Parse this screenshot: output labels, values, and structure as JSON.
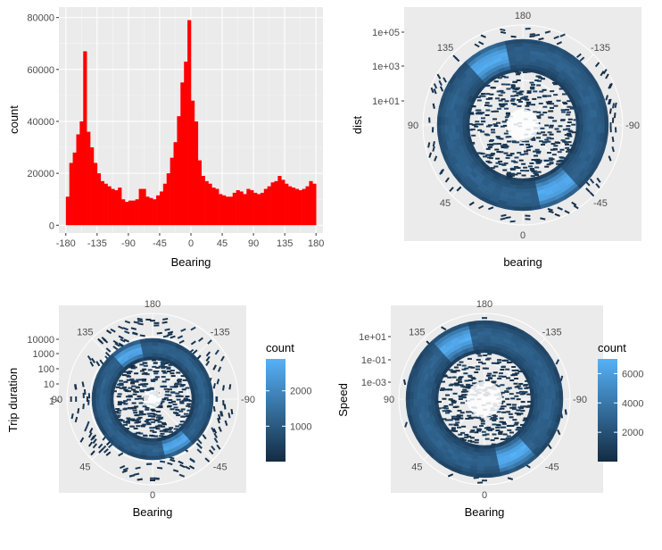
{
  "chart_data": [
    {
      "type": "bar",
      "xlabel": "Bearing",
      "ylabel": "count",
      "xlim": [
        -190,
        190
      ],
      "ylim": [
        -3000,
        84000
      ],
      "x_ticks": [
        -180,
        -135,
        -90,
        -45,
        0,
        45,
        90,
        135,
        180
      ],
      "y_ticks": [
        0,
        20000,
        40000,
        60000,
        80000
      ],
      "bar_color": "#ff0000",
      "panel_color": "#ebebeb",
      "bin_width": 5,
      "x": [
        -177.5,
        -172.5,
        -167.5,
        -162.5,
        -157.5,
        -152.5,
        -147.5,
        -142.5,
        -137.5,
        -132.5,
        -127.5,
        -122.5,
        -117.5,
        -112.5,
        -107.5,
        -102.5,
        -97.5,
        -92.5,
        -87.5,
        -82.5,
        -77.5,
        -72.5,
        -67.5,
        -62.5,
        -57.5,
        -52.5,
        -47.5,
        -42.5,
        -37.5,
        -32.5,
        -27.5,
        -22.5,
        -17.5,
        -12.5,
        -7.5,
        -2.5,
        2.5,
        7.5,
        12.5,
        17.5,
        22.5,
        27.5,
        32.5,
        37.5,
        42.5,
        47.5,
        52.5,
        57.5,
        62.5,
        67.5,
        72.5,
        77.5,
        82.5,
        87.5,
        92.5,
        97.5,
        102.5,
        107.5,
        112.5,
        117.5,
        122.5,
        127.5,
        132.5,
        137.5,
        142.5,
        147.5,
        152.5,
        157.5,
        162.5,
        167.5,
        172.5,
        177.5
      ],
      "values": [
        11000,
        24000,
        28000,
        35000,
        40000,
        67000,
        36000,
        30000,
        24000,
        20000,
        17000,
        16000,
        15000,
        14000,
        13500,
        14500,
        10000,
        9000,
        9500,
        9500,
        10000,
        14000,
        14000,
        11000,
        10500,
        10000,
        11500,
        13000,
        16000,
        20000,
        26000,
        32000,
        42000,
        55000,
        63000,
        79000,
        48000,
        40000,
        25000,
        19000,
        17000,
        16000,
        14500,
        14000,
        12000,
        11500,
        11000,
        11000,
        12500,
        13500,
        13000,
        12000,
        14000,
        13500,
        12500,
        12000,
        12500,
        14000,
        15000,
        16500,
        17000,
        19000,
        17500,
        16000,
        15000,
        14500,
        14000,
        13500,
        14000,
        15000,
        17000,
        16000
      ]
    },
    {
      "type": "heatmap",
      "projection": "polar",
      "xlabel": "bearing",
      "ylabel": "dist",
      "y_tick_labels": [
        "1e+05",
        "1e+03",
        "1e+01"
      ],
      "angle_labels": [
        "180",
        "-135",
        "-90",
        "-45",
        "0",
        "45",
        "90",
        "135"
      ],
      "legend": "none"
    },
    {
      "type": "heatmap",
      "projection": "polar",
      "xlabel": "Bearing",
      "ylabel": "Trip duration",
      "y_tick_labels": [
        "10000",
        "1000",
        "100",
        "10",
        "1"
      ],
      "angle_labels": [
        "180",
        "-135",
        "-90",
        "-45",
        "0",
        "45",
        "90",
        "135"
      ],
      "legend_title": "count",
      "legend_ticks": [
        1000,
        2000
      ],
      "legend_range": [
        0,
        2900
      ],
      "color_low": "#132b43",
      "color_high": "#56b1f7"
    },
    {
      "type": "heatmap",
      "projection": "polar",
      "xlabel": "Bearing",
      "ylabel": "Speed",
      "y_tick_labels": [
        "1e+01",
        "1e-01",
        "1e-03"
      ],
      "angle_labels": [
        "180",
        "-135",
        "-90",
        "-45",
        "0",
        "45",
        "90",
        "135"
      ],
      "legend_title": "count",
      "legend_ticks": [
        2000,
        4000,
        6000
      ],
      "legend_range": [
        0,
        7000
      ],
      "color_low": "#132b43",
      "color_high": "#56b1f7"
    }
  ]
}
